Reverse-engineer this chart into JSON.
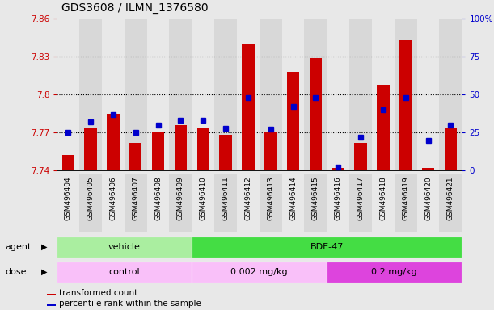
{
  "title": "GDS3608 / ILMN_1376580",
  "samples": [
    "GSM496404",
    "GSM496405",
    "GSM496406",
    "GSM496407",
    "GSM496408",
    "GSM496409",
    "GSM496410",
    "GSM496411",
    "GSM496412",
    "GSM496413",
    "GSM496414",
    "GSM496415",
    "GSM496416",
    "GSM496417",
    "GSM496418",
    "GSM496419",
    "GSM496420",
    "GSM496421"
  ],
  "red_values": [
    7.752,
    7.773,
    7.785,
    7.762,
    7.77,
    7.776,
    7.774,
    7.768,
    7.84,
    7.77,
    7.818,
    7.829,
    7.742,
    7.762,
    7.808,
    7.843,
    7.742,
    7.773
  ],
  "blue_values": [
    25,
    32,
    37,
    25,
    30,
    33,
    33,
    28,
    48,
    27,
    42,
    48,
    2,
    22,
    40,
    48,
    20,
    30
  ],
  "ylim_left": [
    7.74,
    7.86
  ],
  "ylim_right": [
    0,
    100
  ],
  "yticks_left": [
    7.74,
    7.77,
    7.8,
    7.83,
    7.86
  ],
  "ytick_labels_left": [
    "7.74",
    "7.77",
    "7.8",
    "7.83",
    "7.86"
  ],
  "yticks_right": [
    0,
    25,
    50,
    75,
    100
  ],
  "ytick_labels_right": [
    "0",
    "25",
    "50",
    "75",
    "100%"
  ],
  "hlines": [
    7.77,
    7.8,
    7.83
  ],
  "bar_color": "#cc0000",
  "marker_color": "#0000cc",
  "bar_width": 0.55,
  "agent_labels": [
    {
      "label": "vehicle",
      "start": 0,
      "end": 6,
      "color": "#aaeea0"
    },
    {
      "label": "BDE-47",
      "start": 6,
      "end": 18,
      "color": "#44dd44"
    }
  ],
  "dose_labels": [
    {
      "label": "control",
      "start": 0,
      "end": 6,
      "color": "#f9c0f9"
    },
    {
      "label": "0.002 mg/kg",
      "start": 6,
      "end": 12,
      "color": "#f9c0f9"
    },
    {
      "label": "0.2 mg/kg",
      "start": 12,
      "end": 18,
      "color": "#dd44dd"
    }
  ],
  "legend_items": [
    {
      "color": "#cc0000",
      "label": "transformed count"
    },
    {
      "color": "#0000cc",
      "label": "percentile rank within the sample"
    }
  ],
  "background_color": "#e8e8e8",
  "plot_bg": "#ffffff",
  "col_bg_odd": "#e8e8e8",
  "col_bg_even": "#d8d8d8",
  "left_tick_color": "#cc0000",
  "right_tick_color": "#0000cc",
  "title_fontsize": 10,
  "tick_fontsize": 7.5,
  "xlabel_fontsize": 6.5
}
